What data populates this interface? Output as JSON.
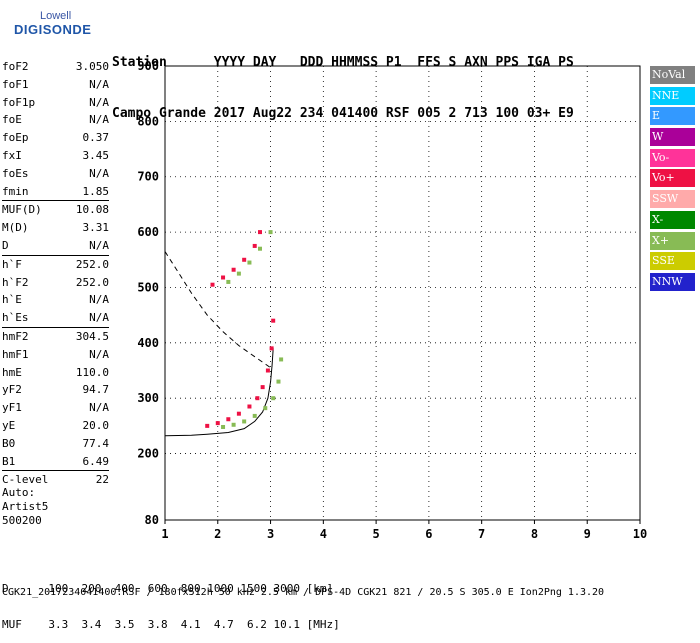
{
  "logo": {
    "line1": "Lowell",
    "line2": "DIGISONDE"
  },
  "header": {
    "line1": "Station      YYYY DAY   DDD HHMMSS P1  FFS S AXN PPS IGA PS",
    "line2": "Campo Grande 2017 Aug22 234 041400 RSF 005 2 713 100 03+ E9"
  },
  "params": [
    {
      "label": "foF2",
      "value": "3.050",
      "sep": false
    },
    {
      "label": "foF1",
      "value": "N/A",
      "sep": false
    },
    {
      "label": "foF1p",
      "value": "N/A",
      "sep": false
    },
    {
      "label": "foE",
      "value": "N/A",
      "sep": false
    },
    {
      "label": "foEp",
      "value": "0.37",
      "sep": false
    },
    {
      "label": "fxI",
      "value": "3.45",
      "sep": false
    },
    {
      "label": "foEs",
      "value": "N/A",
      "sep": false
    },
    {
      "label": "fmin",
      "value": "1.85",
      "sep": false
    },
    {
      "label": "MUF(D)",
      "value": "10.08",
      "sep": true
    },
    {
      "label": "M(D)",
      "value": "3.31",
      "sep": false
    },
    {
      "label": "D",
      "value": "N/A",
      "sep": false
    },
    {
      "label": "h`F",
      "value": "252.0",
      "sep": true
    },
    {
      "label": "h`F2",
      "value": "252.0",
      "sep": false
    },
    {
      "label": "h`E",
      "value": "N/A",
      "sep": false
    },
    {
      "label": "h`Es",
      "value": "N/A",
      "sep": false
    },
    {
      "label": "hmF2",
      "value": "304.5",
      "sep": true
    },
    {
      "label": "hmF1",
      "value": "N/A",
      "sep": false
    },
    {
      "label": "hmE",
      "value": "110.0",
      "sep": false
    },
    {
      "label": "yF2",
      "value": "94.7",
      "sep": false
    },
    {
      "label": "yF1",
      "value": "N/A",
      "sep": false
    },
    {
      "label": "yE",
      "value": "20.0",
      "sep": false
    },
    {
      "label": "B0",
      "value": "77.4",
      "sep": false
    },
    {
      "label": "B1",
      "value": "6.49",
      "sep": false
    },
    {
      "label": "C-level",
      "value": "22",
      "sep": true
    }
  ],
  "auto": {
    "l1": "Auto:",
    "l2": "Artist5",
    "l3": "500200"
  },
  "dmuf": {
    "d": "D      100  200  400  600  800 1000 1500 3000 [km]",
    "muf": "MUF    3.3  3.4  3.5  3.8  4.1  4.7  6.2 10.1 [MHz]"
  },
  "footer": "CGK21_2017234041400.RSF / 180fx512h 50 kHz 2.5 km / DPS-4D CGK21 821 / 20.5 S 305.0 E Ion2Png 1.3.20",
  "legend": [
    {
      "label": "NoVal",
      "color": "#808080"
    },
    {
      "label": "NNE",
      "color": "#00ccff"
    },
    {
      "label": "E",
      "color": "#3399ff"
    },
    {
      "label": "W",
      "color": "#aa0099"
    },
    {
      "label": "Vo-",
      "color": "#ff3399"
    },
    {
      "label": "Vo+",
      "color": "#ee1144"
    },
    {
      "label": "SSW",
      "color": "#ffaaaa"
    },
    {
      "label": "X-",
      "color": "#008800"
    },
    {
      "label": "X+",
      "color": "#88bb55"
    },
    {
      "label": "SSE",
      "color": "#cccc00"
    },
    {
      "label": "NNW",
      "color": "#2222cc"
    }
  ],
  "chart_data": {
    "type": "scatter",
    "xlim": [
      1,
      10
    ],
    "ylim": [
      80,
      900
    ],
    "xticks": [
      1,
      2,
      3,
      4,
      5,
      6,
      7,
      8,
      9,
      10
    ],
    "yticks": [
      80,
      200,
      300,
      400,
      500,
      600,
      700,
      800,
      900
    ],
    "series": [
      {
        "name": "Vo-",
        "color": "#ee1144",
        "x": [
          1.8,
          2.0,
          2.2,
          2.4,
          2.6,
          2.75,
          2.85,
          2.95,
          3.02,
          3.05
        ],
        "y": [
          250,
          255,
          262,
          272,
          285,
          300,
          320,
          350,
          390,
          440
        ]
      },
      {
        "name": "X+",
        "color": "#88bb55",
        "x": [
          2.1,
          2.3,
          2.5,
          2.7,
          2.9,
          3.05,
          3.15,
          3.2
        ],
        "y": [
          248,
          252,
          258,
          268,
          282,
          300,
          330,
          370
        ]
      },
      {
        "name": "Vo+",
        "color": "#ee1144",
        "x": [
          1.9,
          2.1,
          2.3,
          2.5,
          2.7,
          2.8
        ],
        "y": [
          505,
          518,
          532,
          550,
          575,
          600
        ]
      },
      {
        "name": "X+",
        "color": "#88bb55",
        "x": [
          2.2,
          2.4,
          2.6,
          2.8,
          3.0
        ],
        "y": [
          510,
          525,
          545,
          570,
          600
        ]
      }
    ],
    "profile_solid": {
      "x": [
        1.0,
        1.5,
        1.8,
        2.2,
        2.5,
        2.7,
        2.85,
        2.95,
        3.0,
        3.03,
        3.05
      ],
      "y": [
        232,
        233,
        235,
        238,
        245,
        258,
        275,
        300,
        330,
        360,
        390
      ]
    },
    "profile_dashed": {
      "x": [
        1.0,
        1.2,
        1.5,
        1.8,
        2.1,
        2.4,
        2.7,
        3.0
      ],
      "y": [
        565,
        535,
        490,
        450,
        420,
        395,
        375,
        355
      ]
    }
  }
}
